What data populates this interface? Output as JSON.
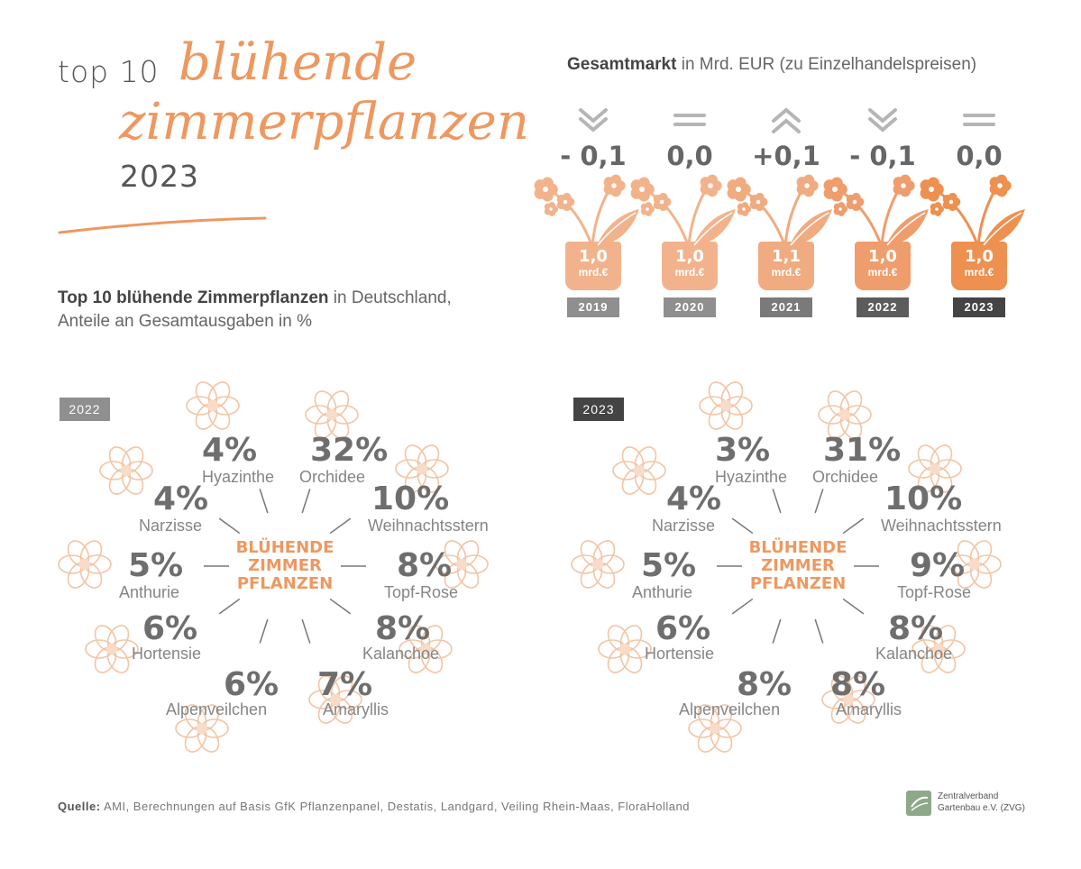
{
  "title": {
    "prefix": "top 10",
    "script_line1": "blühende",
    "script_line2": "zimmerpflanzen",
    "year": "2023"
  },
  "subtitle": {
    "bold": "Top 10 blühende Zimmerpflanzen",
    "rest": " in Deutschland,",
    "line2": "Anteile an Gesamtausgaben in %"
  },
  "market": {
    "head_bold": "Gesamtmarkt",
    "head_rest": " in Mrd. EUR (zu Einzelhandelspreisen)",
    "unit": "mrd.€",
    "years": [
      {
        "year": "2019",
        "change": "- 0,1",
        "trend": "down",
        "value": "1,0"
      },
      {
        "year": "2020",
        "change": "0,0",
        "trend": "flat",
        "value": "1,0"
      },
      {
        "year": "2021",
        "change": "+0,1",
        "trend": "up",
        "value": "1,1"
      },
      {
        "year": "2022",
        "change": "- 0,1",
        "trend": "down",
        "value": "1,0"
      },
      {
        "year": "2023",
        "change": "0,0",
        "trend": "flat",
        "value": "1,0"
      }
    ]
  },
  "center_label": [
    "BLÜHENDE",
    "ZIMMER",
    "PFLANZEN"
  ],
  "chart_data": [
    {
      "type": "table",
      "label": "2022",
      "categories": [
        "Hyazinthe",
        "Orchidee",
        "Weihnachtsstern",
        "Topf-Rose",
        "Kalanchoe",
        "Amaryllis",
        "Alpenveilchen",
        "Hortensie",
        "Anthurie",
        "Narzisse"
      ],
      "values": [
        4,
        32,
        10,
        8,
        8,
        7,
        6,
        6,
        5,
        4
      ],
      "display": [
        "4%",
        "32%",
        "10%",
        "8%",
        "8%",
        "7%",
        "6%",
        "6%",
        "5%",
        "4%"
      ]
    },
    {
      "type": "table",
      "label": "2023",
      "categories": [
        "Hyazinthe",
        "Orchidee",
        "Weihnachtsstern",
        "Topf-Rose",
        "Kalanchoe",
        "Amaryllis",
        "Alpenveilchen",
        "Hortensie",
        "Anthurie",
        "Narzisse"
      ],
      "values": [
        3,
        31,
        10,
        9,
        8,
        8,
        8,
        6,
        5,
        4
      ],
      "display": [
        "3%",
        "31%",
        "10%",
        "9%",
        "8%",
        "8%",
        "8%",
        "6%",
        "5%",
        "4%"
      ]
    }
  ],
  "source": {
    "bold": "Quelle:",
    "rest": " AMI, Berechnungen auf Basis GfK Pflanzenpanel, Destatis, Landgard, Veiling Rhein-Maas, FloraHolland"
  },
  "logo": {
    "line1": "Zentralverband",
    "line2": "Gartenbau e.V. (ZVG)"
  },
  "colors": {
    "accent": "#ee9860",
    "flower": "#f3c4a4",
    "pot": [
      "#f2b38c",
      "#f2b38c",
      "#f0ab80",
      "#ef9d6c",
      "#ee9050"
    ],
    "year_tag": [
      "#8f8f8f",
      "#8f8f8f",
      "#7a7a7a",
      "#5c5c5c",
      "#444444"
    ],
    "tag_2022": "#8f8f8f",
    "tag_2023": "#444444"
  }
}
